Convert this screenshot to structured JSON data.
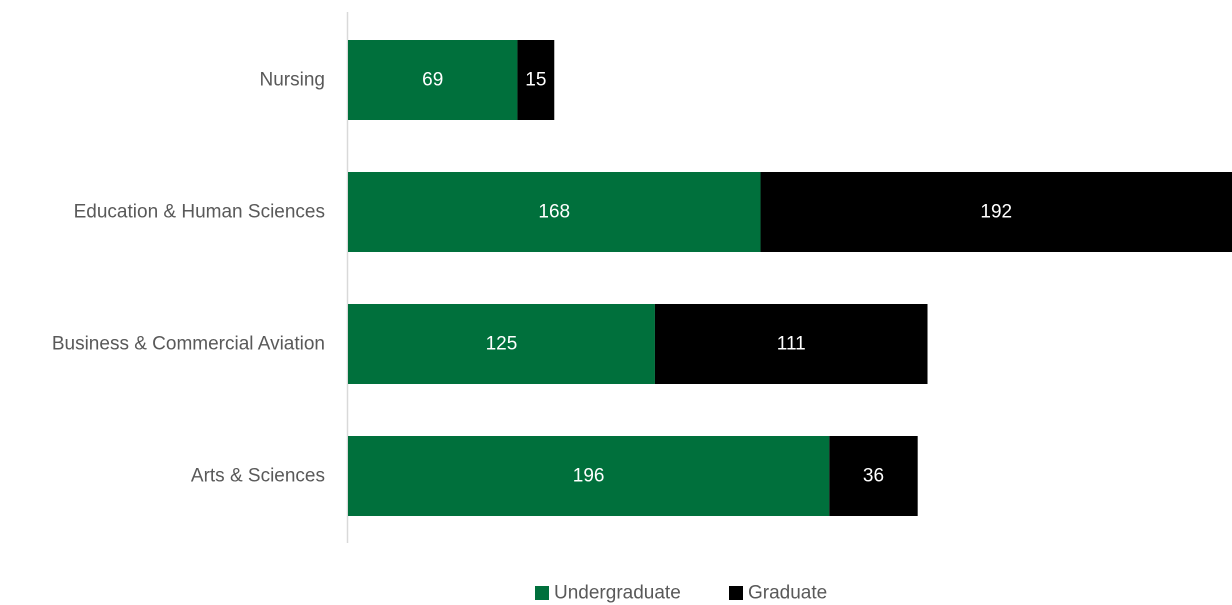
{
  "chart_data": {
    "type": "bar",
    "orientation": "horizontal",
    "stacked": true,
    "categories": [
      "Nursing",
      "Education & Human Sciences",
      "Business & Commercial Aviation",
      "Arts & Sciences"
    ],
    "series": [
      {
        "name": "Undergraduate",
        "values": [
          69,
          168,
          125,
          196
        ],
        "color": "#00703c"
      },
      {
        "name": "Graduate",
        "values": [
          15,
          192,
          111,
          36
        ],
        "color": "#000000"
      }
    ],
    "title": "",
    "xlabel": "",
    "ylabel": "",
    "xlim": [
      0,
      360
    ],
    "grid": false,
    "legend": "bottom",
    "data_labels": true
  }
}
